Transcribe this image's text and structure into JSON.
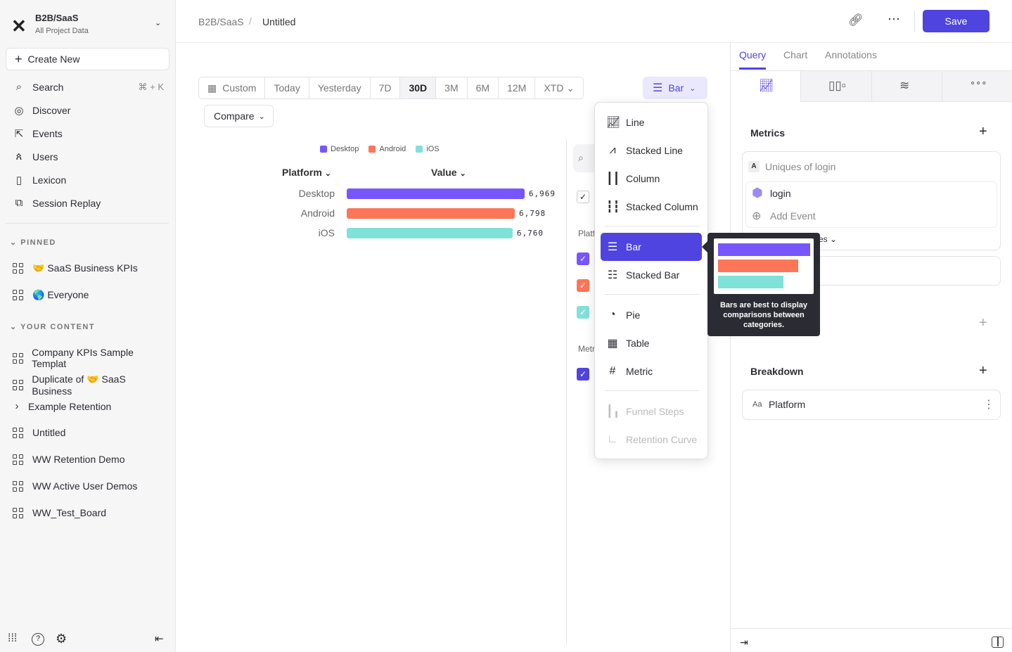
{
  "workspace": {
    "name": "B2B/SaaS",
    "subtitle": "All Project Data"
  },
  "sidebar": {
    "create_new": "Create New",
    "items": [
      {
        "label": "Search",
        "shortcut": "⌘ + K",
        "icon": "search-icon"
      },
      {
        "label": "Discover",
        "icon": "compass-icon"
      },
      {
        "label": "Events",
        "icon": "cursor-click-icon"
      },
      {
        "label": "Users",
        "icon": "users-icon"
      },
      {
        "label": "Lexicon",
        "icon": "book-icon"
      },
      {
        "label": "Session Replay",
        "icon": "play-icon"
      }
    ],
    "pinned_header": "PINNED",
    "pinned": [
      {
        "label": "🤝 SaaS Business KPIs"
      },
      {
        "label": "🌎 Everyone"
      }
    ],
    "content_header": "YOUR CONTENT",
    "content": [
      {
        "label": "Company KPIs Sample Templat"
      },
      {
        "label": "Duplicate of 🤝 SaaS Business"
      },
      {
        "label": "Example Retention"
      },
      {
        "label": "Untitled"
      },
      {
        "label": "WW Retention Demo"
      },
      {
        "label": "WW Active User Demos"
      },
      {
        "label": "WW_Test_Board"
      }
    ]
  },
  "header": {
    "breadcrumb": [
      "B2B/SaaS",
      "Untitled"
    ],
    "save": "Save"
  },
  "date_range": {
    "options": [
      "Custom",
      "Today",
      "Yesterday",
      "7D",
      "30D",
      "3M",
      "6M",
      "12M",
      "XTD"
    ],
    "selected": "30D"
  },
  "compare": "Compare",
  "chart_type_button": "Bar",
  "chart_menu": {
    "items": [
      "Line",
      "Stacked Line",
      "Column",
      "Stacked Column",
      "Bar",
      "Stacked Bar",
      "Pie",
      "Table",
      "Metric",
      "Funnel Steps",
      "Retention Curve"
    ],
    "selected": "Bar",
    "disabled": [
      "Funnel Steps",
      "Retention Curve"
    ]
  },
  "tooltip": "Bars are best to display comparisons between categories.",
  "side_labels": {
    "platform": "Platf",
    "metric": "Metr"
  },
  "chart_data": {
    "type": "bar",
    "orientation": "horizontal",
    "column_headers": [
      "Platform",
      "Value"
    ],
    "categories": [
      "Desktop",
      "Android",
      "iOS"
    ],
    "values": [
      6969,
      6798,
      6760
    ],
    "value_labels": [
      "6,969",
      "6,798",
      "6,760"
    ],
    "colors": [
      "#7856ff",
      "#ff7557",
      "#80e1d9"
    ],
    "legend": [
      "Desktop",
      "Android",
      "iOS"
    ],
    "legend_position": "top"
  },
  "right_panel": {
    "tabs": [
      "Query",
      "Chart",
      "Annotations"
    ],
    "active_tab": "Query",
    "metrics_title": "Metrics",
    "metric_letter": "A",
    "metric_name": "Uniques of login",
    "event": "login",
    "add_event": "Add Event",
    "measure_fragment": "es",
    "breakdown_title": "Breakdown",
    "breakdown_type": "Aa",
    "breakdown_value": "Platform"
  }
}
